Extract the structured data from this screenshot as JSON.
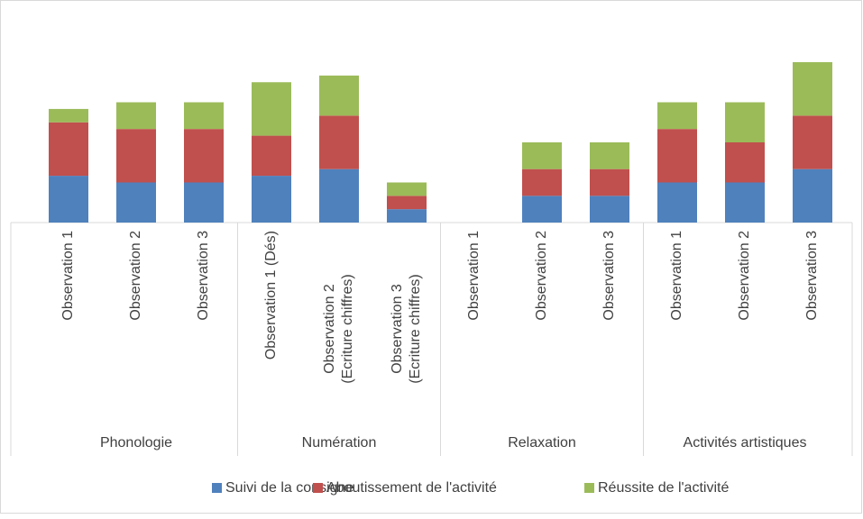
{
  "chart_data": {
    "type": "stacked_bar",
    "groups": [
      {
        "name": "Phonologie",
        "categories": [
          [
            "Observation 1"
          ],
          [
            "Observation 2"
          ],
          [
            "Observation 3"
          ]
        ]
      },
      {
        "name": "Numération",
        "categories": [
          [
            "Observation 1 (Dés)"
          ],
          [
            "Observation 2",
            "(Ecriture chiffres)"
          ],
          [
            "Observation 3",
            "(Ecriture chiffres)"
          ]
        ]
      },
      {
        "name": "Relaxation",
        "categories": [
          [
            "Observation 1"
          ],
          [
            "Observation 2"
          ],
          [
            "Observation 3"
          ]
        ]
      },
      {
        "name": "Activités artistiques",
        "categories": [
          [
            "Observation 1"
          ],
          [
            "Observation 2"
          ],
          [
            "Observation 3"
          ]
        ]
      }
    ],
    "series": [
      {
        "name": "Suivi de la consigne",
        "color": "#4f81bd",
        "values": [
          7,
          6,
          6,
          7,
          8,
          2,
          0,
          4,
          4,
          6,
          6,
          8
        ]
      },
      {
        "name": "Aboutissement de l'activité",
        "color": "#c0504d",
        "values": [
          8,
          8,
          8,
          6,
          8,
          2,
          0,
          4,
          4,
          8,
          6,
          8
        ]
      },
      {
        "name": "Réussite de l'activité",
        "color": "#9bbb59",
        "values": [
          2,
          4,
          4,
          8,
          6,
          2,
          0,
          4,
          4,
          4,
          6,
          8
        ]
      }
    ],
    "ylim": [
      0,
      24
    ]
  }
}
